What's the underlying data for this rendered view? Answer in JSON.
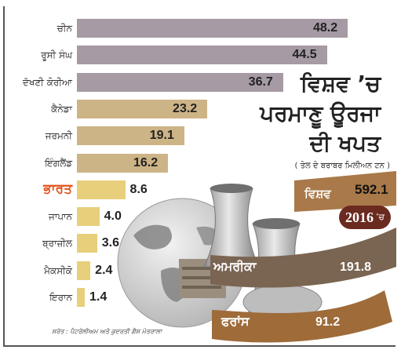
{
  "chart_data": {
    "type": "bar",
    "orientation": "horizontal",
    "title": [
      "ਵਿਸ਼ਵ ’ਚ",
      "ਪਰਮਾਣੂ ਊਰਜਾ",
      "ਦੀ ਖਪਤ"
    ],
    "subtitle": "( ਤੇਲ ਦੇ ਬਰਾਬਰ ਮਿਲੀਅਨ ਟਨ )",
    "categories": [
      "ਚੀਨ",
      "ਰੂਸੀ ਸੰਘ",
      "ਦੱਖਣੀ ਕੋਰੀਆ",
      "ਕੈਨੇਡਾ",
      "ਜਰਮਨੀ",
      "ਇੰਗਲੈਂਡ",
      "ਭਾਰਤ",
      "ਜਾਪਾਨ",
      "ਬ੍ਰਾਜ਼ੀਲ",
      "ਮੈਕਸੀਕੋ",
      "ਇਰਾਨ"
    ],
    "values": [
      48.2,
      44.5,
      36.7,
      23.2,
      19.1,
      16.2,
      8.6,
      4.0,
      3.6,
      2.4,
      1.4
    ],
    "value_labels": [
      "48.2",
      "44.5",
      "36.7",
      "23.2",
      "19.1",
      "16.2",
      "8.6",
      "4.0",
      "3.6",
      "2.4",
      "1.4"
    ],
    "highlight_category": "ਭਾਰਤ",
    "xlim": [
      0,
      48.2
    ],
    "grid": false,
    "callouts": [
      {
        "label": "ਵਿਸ਼ਵ",
        "value": "592.1"
      },
      {
        "label": "ਅਮਰੀਕਾ",
        "value": "191.8"
      },
      {
        "label": "ਫਰਾਂਸ",
        "value": "91.2"
      }
    ],
    "year": "2016",
    "year_suffix": "’ਚ"
  },
  "colors": {
    "bar_top": "#a69aa4",
    "bar_mid": "#cdb486",
    "bar_low": "#e7cf7c",
    "highlight": "#e2541b",
    "ribbon_world": "#a97949",
    "ribbon_usa": "#7a6552",
    "ribbon_france": "#9e6b39",
    "year_badge": "#6b2a1f"
  },
  "source": "ਸਰੋਤ : ਪੈਟਰੋਲੀਅਮ ਅਤੇ ਕੁਦਰਤੀ ਗੈਸ ਮੰਤਰਾਲਾ",
  "illustration": {
    "globe": "globe-icon",
    "plant": "nuclear-plant-icon"
  }
}
